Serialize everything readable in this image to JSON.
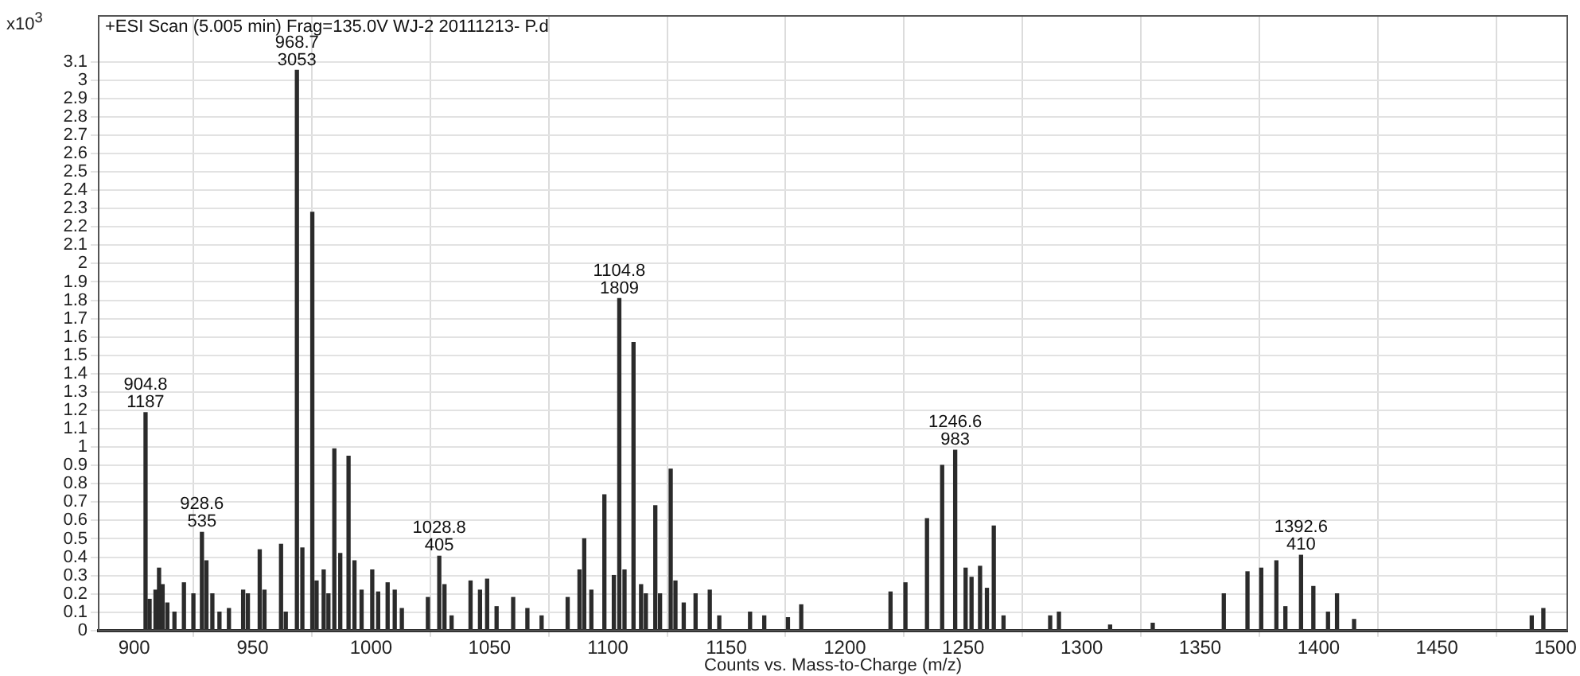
{
  "chart_data": {
    "type": "bar",
    "title": "+ESI Scan (5.005 min) Frag=135.0V WJ-2 20111213- P.d",
    "xlabel": "Counts vs. Mass-to-Charge (m/z)",
    "ylabel": "x10$^{3}$",
    "x": [
      904.8,
      906.5,
      909,
      910.5,
      912,
      914,
      917,
      921,
      925,
      928.6,
      930.5,
      933,
      936,
      940,
      946,
      948,
      953,
      955,
      962,
      964,
      968.7,
      971,
      975.2,
      977,
      980,
      982,
      984.5,
      987,
      990.5,
      993,
      996,
      1000.5,
      1003,
      1007,
      1010,
      1013,
      1024,
      1028.8,
      1031,
      1034,
      1042,
      1046,
      1049,
      1053,
      1060,
      1066,
      1072,
      1083,
      1088,
      1090,
      1093,
      1098.5,
      1102.5,
      1104.8,
      1107,
      1110.8,
      1114,
      1116,
      1120,
      1122,
      1126.5,
      1128.5,
      1132,
      1137,
      1143,
      1147,
      1160,
      1166,
      1176,
      1181.6,
      1219.3,
      1225.6,
      1234.7,
      1241.1,
      1246.6,
      1251,
      1253.5,
      1257.1,
      1260,
      1262.9,
      1267,
      1286.7,
      1290.4,
      1312,
      1330,
      1360,
      1370,
      1375.8,
      1382.2,
      1386,
      1392.6,
      1397.8,
      1404,
      1407.8,
      1415,
      1490,
      1494.9
    ],
    "values": [
      1.187,
      0.17,
      0.22,
      0.34,
      0.25,
      0.15,
      0.1,
      0.26,
      0.2,
      0.535,
      0.38,
      0.2,
      0.1,
      0.12,
      0.22,
      0.2,
      0.44,
      0.22,
      0.47,
      0.1,
      3.053,
      0.45,
      2.28,
      0.27,
      0.33,
      0.2,
      0.99,
      0.42,
      0.95,
      0.38,
      0.22,
      0.33,
      0.21,
      0.26,
      0.22,
      0.12,
      0.18,
      0.405,
      0.25,
      0.08,
      0.27,
      0.22,
      0.28,
      0.13,
      0.18,
      0.12,
      0.08,
      0.18,
      0.33,
      0.5,
      0.22,
      0.74,
      0.3,
      1.809,
      0.33,
      1.57,
      0.25,
      0.2,
      0.68,
      0.2,
      0.88,
      0.27,
      0.15,
      0.2,
      0.22,
      0.08,
      0.1,
      0.08,
      0.07,
      0.14,
      0.21,
      0.26,
      0.61,
      0.9,
      0.983,
      0.34,
      0.29,
      0.35,
      0.23,
      0.57,
      0.08,
      0.08,
      0.1,
      0.03,
      0.04,
      0.2,
      0.32,
      0.34,
      0.38,
      0.13,
      0.41,
      0.24,
      0.1,
      0.2,
      0.06,
      0.08,
      0.12
    ],
    "color": "#2b2b2b",
    "xlim": [
      885,
      1505
    ],
    "xticks": [
      900,
      950,
      1000,
      1050,
      1100,
      1150,
      1200,
      1250,
      1300,
      1350,
      1400,
      1450,
      1500
    ],
    "ylim": [
      0,
      3.35
    ],
    "yticks": [
      0,
      0.1,
      0.2,
      0.3,
      0.4,
      0.5,
      0.6,
      0.7,
      0.8,
      0.9,
      1,
      1.1,
      1.2,
      1.3,
      1.4,
      1.5,
      1.6,
      1.7,
      1.8,
      1.9,
      2,
      2.1,
      2.2,
      2.3,
      2.4,
      2.5,
      2.6,
      2.7,
      2.8,
      2.9,
      3,
      3.1
    ],
    "grid": true,
    "annotations": [
      {
        "text": "904.8\n1187",
        "x": 904.8,
        "y": 1.187
      },
      {
        "text": "928.6\n535",
        "x": 928.6,
        "y": 0.535
      },
      {
        "text": "968.7\n3053",
        "x": 968.7,
        "y": 3.053
      },
      {
        "text": "1028.8\n405",
        "x": 1028.8,
        "y": 0.405
      },
      {
        "text": "1104.8\n1809",
        "x": 1104.8,
        "y": 1.809
      },
      {
        "text": "1246.6\n983",
        "x": 1246.6,
        "y": 0.983
      },
      {
        "text": "1392.6\n410",
        "x": 1392.6,
        "y": 0.41
      }
    ]
  }
}
